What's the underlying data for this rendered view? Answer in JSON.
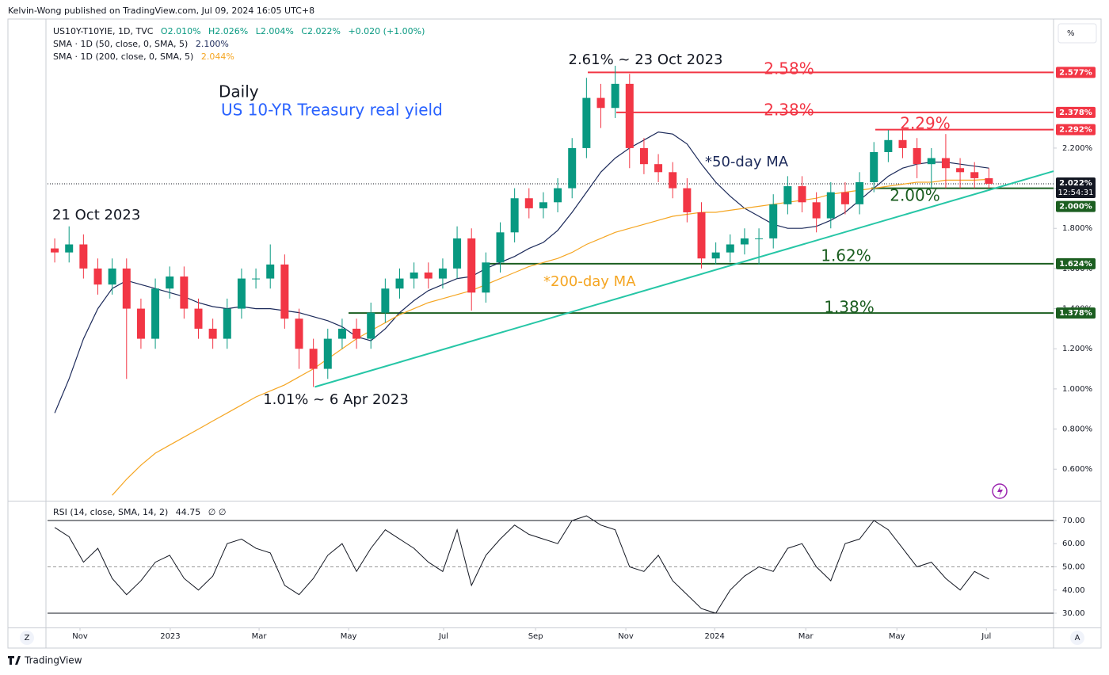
{
  "header": {
    "publisher": "Kelvin-Wong published on TradingView.com, Jul 09, 2024 16:05 UTC+8"
  },
  "legend": {
    "symbol": "US10Y-T10YIE, 1D, TVC",
    "open": "O2.010%",
    "high": "H2.026%",
    "low": "L2.004%",
    "close": "C2.022%",
    "change": "+0.020 (+1.00%)",
    "sma50_value": "2.100%",
    "sma200_value": "2.044%",
    "rsi_value": "44.75",
    "rsi_flags": "∅ ∅"
  },
  "annotations": {
    "period": "Daily",
    "subject": "US 10-YR Treasury real yield",
    "peak": "2.61% ~ 23 Oct 2023",
    "trough": "1.01% ~ 6 Apr 2023",
    "start": "21 Oct 2023",
    "ma50": "*50-day MA",
    "ma200": "*200-day MA"
  },
  "controls": {
    "scale": "%",
    "zoom": "Z",
    "auto": "A"
  },
  "footer": {
    "brand": "TradingView"
  },
  "chart_data": [
    {
      "type": "candlestick",
      "up_color": "#089981",
      "down_color": "#f23645",
      "xlim": [
        0,
        70
      ],
      "xticks": [
        {
          "value": 2.26,
          "label": "Nov"
        },
        {
          "value": 8.54,
          "label": "2023"
        },
        {
          "value": 14.72,
          "label": "Mar"
        },
        {
          "value": 20.95,
          "label": "May"
        },
        {
          "value": 27.56,
          "label": "Jul"
        },
        {
          "value": 33.96,
          "label": "Sep"
        },
        {
          "value": 40.24,
          "label": "Nov"
        },
        {
          "value": 46.42,
          "label": "2024"
        },
        {
          "value": 52.76,
          "label": "Mar"
        },
        {
          "value": 59.1,
          "label": "May"
        },
        {
          "value": 65.33,
          "label": "Jul"
        }
      ],
      "ylim": [
        0.443,
        2.851
      ],
      "yticks": [
        {
          "value": 0.6,
          "label": "0.600%"
        },
        {
          "value": 0.8,
          "label": "0.800%"
        },
        {
          "value": 1.0,
          "label": "1.000%"
        },
        {
          "value": 1.2,
          "label": "1.200%"
        },
        {
          "value": 1.4,
          "label": "1.400%"
        },
        {
          "value": 1.6,
          "label": "1.600%"
        },
        {
          "value": 1.8,
          "label": "1.800%"
        },
        {
          "value": 2.0,
          "label": "2.000%"
        },
        {
          "value": 2.2,
          "label": "2.200%"
        }
      ],
      "grid": false,
      "open": [
        1.7,
        1.68,
        1.72,
        1.6,
        1.52,
        1.6,
        1.4,
        1.25,
        1.5,
        1.56,
        1.4,
        1.3,
        1.25,
        1.4,
        1.55,
        1.55,
        1.62,
        1.35,
        1.2,
        1.1,
        1.25,
        1.3,
        1.25,
        1.38,
        1.5,
        1.55,
        1.58,
        1.55,
        1.6,
        1.75,
        1.48,
        1.63,
        1.78,
        1.95,
        1.9,
        1.93,
        2.0,
        2.2,
        2.45,
        2.4,
        2.52,
        2.2,
        2.12,
        2.08,
        2.0,
        1.88,
        1.65,
        1.68,
        1.72,
        1.75,
        1.75,
        1.92,
        2.01,
        1.93,
        1.85,
        1.98,
        1.92,
        2.03,
        2.18,
        2.24,
        2.2,
        2.12,
        2.15,
        2.1,
        2.08,
        2.05
      ],
      "high": [
        1.75,
        1.81,
        1.77,
        1.65,
        1.65,
        1.65,
        1.45,
        1.55,
        1.61,
        1.61,
        1.45,
        1.35,
        1.45,
        1.6,
        1.6,
        1.72,
        1.67,
        1.4,
        1.25,
        1.3,
        1.35,
        1.35,
        1.43,
        1.55,
        1.6,
        1.63,
        1.63,
        1.65,
        1.81,
        1.8,
        1.68,
        1.83,
        2.0,
        2.0,
        1.98,
        2.05,
        2.25,
        2.55,
        2.52,
        2.61,
        2.57,
        2.25,
        2.17,
        2.13,
        2.05,
        1.93,
        1.73,
        1.77,
        1.8,
        1.8,
        1.97,
        2.06,
        2.06,
        1.98,
        2.03,
        2.03,
        2.08,
        2.23,
        2.29,
        2.29,
        2.25,
        2.2,
        2.27,
        2.15,
        2.13,
        2.1
      ],
      "low": [
        1.63,
        1.63,
        1.55,
        1.47,
        1.47,
        1.05,
        1.2,
        1.2,
        1.45,
        1.35,
        1.25,
        1.2,
        1.2,
        1.35,
        1.5,
        1.5,
        1.3,
        1.1,
        1.01,
        1.05,
        1.2,
        1.2,
        1.2,
        1.33,
        1.45,
        1.5,
        1.5,
        1.5,
        1.55,
        1.39,
        1.43,
        1.58,
        1.73,
        1.85,
        1.85,
        1.88,
        1.95,
        2.15,
        2.3,
        2.35,
        2.1,
        2.07,
        2.03,
        1.95,
        1.83,
        1.6,
        1.62,
        1.63,
        1.67,
        1.62,
        1.7,
        1.87,
        1.88,
        1.78,
        1.8,
        1.87,
        1.87,
        1.98,
        2.13,
        2.15,
        2.05,
        2.0,
        2.0,
        2.0,
        2.0,
        2.0
      ],
      "close": [
        1.68,
        1.72,
        1.6,
        1.52,
        1.6,
        1.4,
        1.25,
        1.5,
        1.56,
        1.4,
        1.3,
        1.25,
        1.4,
        1.55,
        1.55,
        1.62,
        1.35,
        1.2,
        1.1,
        1.25,
        1.3,
        1.25,
        1.38,
        1.5,
        1.55,
        1.58,
        1.55,
        1.6,
        1.75,
        1.48,
        1.63,
        1.78,
        1.95,
        1.9,
        1.93,
        2.0,
        2.2,
        2.45,
        2.4,
        2.52,
        2.2,
        2.12,
        2.08,
        2.0,
        1.88,
        1.65,
        1.68,
        1.72,
        1.75,
        1.75,
        1.92,
        2.01,
        1.93,
        1.85,
        1.98,
        1.92,
        2.03,
        2.18,
        2.24,
        2.2,
        2.12,
        2.15,
        2.1,
        2.08,
        2.05,
        2.022
      ],
      "series": [
        {
          "name": "SMA · 1D (50, close, 0, SMA, 5)",
          "color": "#1c2a5a",
          "values": [
            0.88,
            1.05,
            1.25,
            1.4,
            1.5,
            1.54,
            1.52,
            1.5,
            1.48,
            1.46,
            1.43,
            1.41,
            1.4,
            1.41,
            1.4,
            1.4,
            1.39,
            1.38,
            1.36,
            1.34,
            1.31,
            1.26,
            1.24,
            1.3,
            1.38,
            1.44,
            1.49,
            1.52,
            1.55,
            1.56,
            1.6,
            1.63,
            1.66,
            1.7,
            1.73,
            1.79,
            1.88,
            1.98,
            2.08,
            2.15,
            2.2,
            2.24,
            2.28,
            2.27,
            2.22,
            2.12,
            2.03,
            1.96,
            1.9,
            1.86,
            1.82,
            1.8,
            1.8,
            1.81,
            1.84,
            1.88,
            1.94,
            2.0,
            2.06,
            2.1,
            2.12,
            2.13,
            2.13,
            2.12,
            2.11,
            2.1
          ]
        },
        {
          "name": "SMA · 1D (200, close, 0, SMA, 5)",
          "color": "#f5a623",
          "values": [
            null,
            null,
            null,
            null,
            0.47,
            0.55,
            0.62,
            0.68,
            0.72,
            0.76,
            0.8,
            0.84,
            0.88,
            0.92,
            0.96,
            0.99,
            1.02,
            1.06,
            1.1,
            1.15,
            1.2,
            1.25,
            1.29,
            1.33,
            1.37,
            1.4,
            1.43,
            1.45,
            1.47,
            1.49,
            1.52,
            1.55,
            1.58,
            1.61,
            1.63,
            1.65,
            1.68,
            1.72,
            1.75,
            1.78,
            1.8,
            1.82,
            1.84,
            1.86,
            1.87,
            1.88,
            1.88,
            1.89,
            1.9,
            1.91,
            1.92,
            1.93,
            1.94,
            1.95,
            1.97,
            1.98,
            1.99,
            2.0,
            2.01,
            2.02,
            2.03,
            2.03,
            2.04,
            2.04,
            2.04,
            2.044
          ]
        }
      ],
      "levels": [
        {
          "value": 2.577,
          "label": "2.577%",
          "annotation": "2.58%",
          "color": "#f23645"
        },
        {
          "value": 2.378,
          "label": "2.378%",
          "annotation": "2.38%",
          "color": "#f23645"
        },
        {
          "value": 2.292,
          "label": "2.292%",
          "annotation": "2.29%",
          "color": "#f23645"
        },
        {
          "value": 2.0,
          "label": "2.000%",
          "annotation": "2.00%",
          "color": "#1b5e20"
        },
        {
          "value": 1.624,
          "label": "1.624%",
          "annotation": "1.62%",
          "color": "#1b5e20"
        },
        {
          "value": 1.378,
          "label": "1.378%",
          "annotation": "1.38%",
          "color": "#1b5e20"
        }
      ],
      "last": {
        "value": 2.022,
        "label": "2.022%",
        "countdown": "12:54:31"
      },
      "trendline": {
        "x": [
          18.6,
          70
        ],
        "y": [
          1.01,
          2.085
        ],
        "color": "#26c6a6"
      }
    },
    {
      "type": "line",
      "title": "RSI (14, close, SMA, 14, 2)",
      "xlim": [
        0,
        70
      ],
      "ylim": [
        23.85,
        78.2
      ],
      "yticks": [
        {
          "value": 30,
          "label": "30.00"
        },
        {
          "value": 40,
          "label": "40.00"
        },
        {
          "value": 50,
          "label": "50.00"
        },
        {
          "value": 60,
          "label": "60.00"
        },
        {
          "value": 70,
          "label": "70.00"
        }
      ],
      "hlines": [
        70,
        50,
        30
      ],
      "color": "#131722",
      "values": [
        67,
        63,
        52,
        58,
        45,
        38,
        44,
        52,
        55,
        45,
        40,
        46,
        60,
        62,
        58,
        56,
        42,
        38,
        45,
        55,
        60,
        48,
        58,
        66,
        62,
        58,
        52,
        48,
        66,
        42,
        55,
        62,
        68,
        64,
        62,
        60,
        70,
        72,
        68,
        66,
        50,
        48,
        55,
        44,
        38,
        32,
        30,
        40,
        46,
        50,
        48,
        58,
        60,
        50,
        44,
        60,
        62,
        70,
        66,
        58,
        50,
        52,
        45,
        40,
        48,
        44.75
      ]
    }
  ]
}
